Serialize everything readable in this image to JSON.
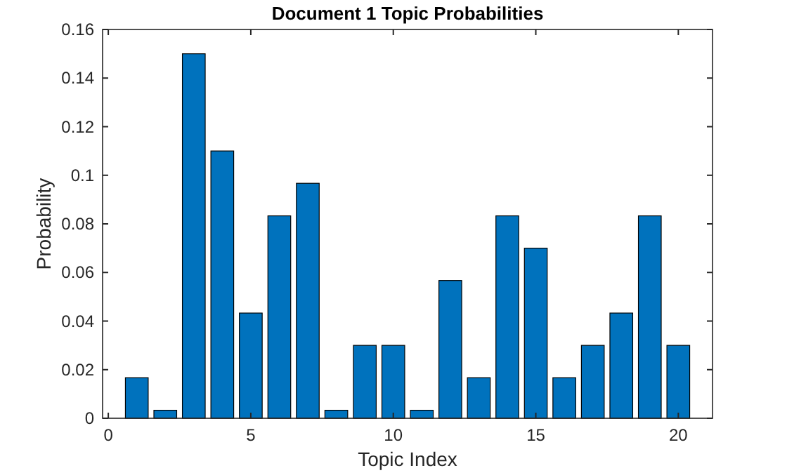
{
  "chart_data": {
    "type": "bar",
    "title": "Document 1 Topic Probabilities",
    "xlabel": "Topic Index",
    "ylabel": "Probability",
    "x": [
      1,
      2,
      3,
      4,
      5,
      6,
      7,
      8,
      9,
      10,
      11,
      12,
      13,
      14,
      15,
      16,
      17,
      18,
      19,
      20
    ],
    "values": [
      0.0167,
      0.0033,
      0.15,
      0.11,
      0.0433,
      0.0833,
      0.0967,
      0.0033,
      0.03,
      0.03,
      0.0033,
      0.0567,
      0.0167,
      0.0833,
      0.07,
      0.0167,
      0.03,
      0.0433,
      0.0833,
      0.03
    ],
    "color": "#0072bd",
    "xlim": [
      -0.2,
      21.2
    ],
    "xticks": [
      0,
      5,
      10,
      15,
      20
    ],
    "ylim": [
      0,
      0.16
    ],
    "yticks": [
      0,
      0.02,
      0.04,
      0.06,
      0.08,
      0.1,
      0.12,
      0.14,
      0.16
    ],
    "grid": false
  }
}
